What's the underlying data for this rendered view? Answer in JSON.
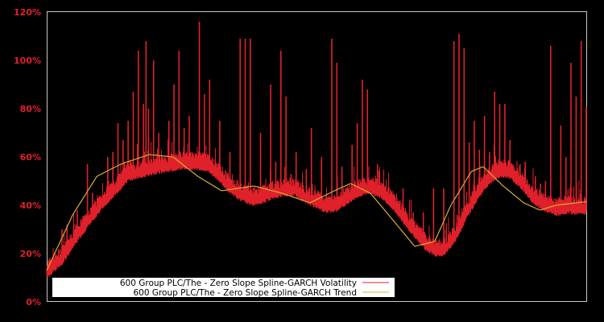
{
  "chart_data": {
    "type": "line",
    "title": "",
    "xlabel": "",
    "ylabel": "",
    "ylim": [
      0,
      120
    ],
    "yticks": [
      "0%",
      "20%",
      "40%",
      "60%",
      "80%",
      "100%",
      "120%"
    ],
    "ytick_values": [
      0,
      20,
      40,
      60,
      80,
      100,
      120
    ],
    "grid": false,
    "legend_position": "lower left",
    "background": "#000000",
    "plot_border": "#c8c8c8",
    "x_index_range": [
      0,
      100
    ],
    "series": [
      {
        "name": "600 Group PLC/The - Zero Slope Spline-GARCH Volatility",
        "color": "#e0202a",
        "baseline_points": [
          [
            0,
            12
          ],
          [
            3,
            18
          ],
          [
            5,
            25
          ],
          [
            8,
            34
          ],
          [
            10,
            40
          ],
          [
            13,
            47
          ],
          [
            15,
            52
          ],
          [
            18,
            54
          ],
          [
            20,
            55
          ],
          [
            22,
            56
          ],
          [
            25,
            57
          ],
          [
            28,
            57
          ],
          [
            30,
            56
          ],
          [
            32,
            52
          ],
          [
            34,
            47
          ],
          [
            36,
            44
          ],
          [
            38,
            42
          ],
          [
            40,
            43
          ],
          [
            42,
            45
          ],
          [
            44,
            46
          ],
          [
            46,
            46
          ],
          [
            48,
            43
          ],
          [
            50,
            41
          ],
          [
            52,
            39
          ],
          [
            54,
            40
          ],
          [
            56,
            43
          ],
          [
            58,
            46
          ],
          [
            60,
            47
          ],
          [
            62,
            45
          ],
          [
            64,
            41
          ],
          [
            66,
            35
          ],
          [
            68,
            29
          ],
          [
            70,
            24
          ],
          [
            72,
            21
          ],
          [
            73,
            21
          ],
          [
            74,
            22
          ],
          [
            76,
            28
          ],
          [
            78,
            37
          ],
          [
            80,
            45
          ],
          [
            82,
            51
          ],
          [
            84,
            54
          ],
          [
            86,
            53
          ],
          [
            88,
            49
          ],
          [
            90,
            43
          ],
          [
            92,
            40
          ],
          [
            94,
            38
          ],
          [
            96,
            38.5
          ],
          [
            98,
            38.5
          ],
          [
            100,
            38.5
          ]
        ],
        "spikes": [
          [
            3,
            30
          ],
          [
            4,
            32
          ],
          [
            6,
            38
          ],
          [
            8,
            57
          ],
          [
            9,
            45
          ],
          [
            10,
            43
          ],
          [
            12,
            60
          ],
          [
            13,
            62
          ],
          [
            14,
            74
          ],
          [
            15,
            67
          ],
          [
            16,
            75
          ],
          [
            17,
            87
          ],
          [
            18,
            104
          ],
          [
            19,
            82
          ],
          [
            19.5,
            108
          ],
          [
            20,
            80
          ],
          [
            21,
            100
          ],
          [
            22,
            70
          ],
          [
            24,
            75
          ],
          [
            25,
            90
          ],
          [
            26,
            104
          ],
          [
            27,
            72
          ],
          [
            28,
            77
          ],
          [
            30,
            116
          ],
          [
            31,
            86
          ],
          [
            32,
            92
          ],
          [
            33,
            56
          ],
          [
            34,
            75
          ],
          [
            36,
            62
          ],
          [
            38,
            109
          ],
          [
            39,
            109
          ],
          [
            40,
            109
          ],
          [
            42,
            70
          ],
          [
            44,
            90
          ],
          [
            45,
            58
          ],
          [
            46,
            104
          ],
          [
            47,
            85
          ],
          [
            48,
            53
          ],
          [
            49,
            62
          ],
          [
            51,
            55
          ],
          [
            52,
            72
          ],
          [
            54,
            60
          ],
          [
            56,
            109
          ],
          [
            57,
            99
          ],
          [
            58,
            56
          ],
          [
            60,
            65
          ],
          [
            61,
            74
          ],
          [
            62,
            92
          ],
          [
            63,
            88
          ],
          [
            65,
            57
          ],
          [
            67,
            44
          ],
          [
            68,
            44
          ],
          [
            70,
            47
          ],
          [
            72,
            37
          ],
          [
            74,
            37
          ],
          [
            76,
            47
          ],
          [
            78,
            47
          ],
          [
            80,
            108
          ],
          [
            81,
            111
          ],
          [
            82,
            105
          ],
          [
            83,
            66
          ],
          [
            84,
            75
          ],
          [
            85,
            63
          ],
          [
            86,
            77
          ],
          [
            87,
            62
          ],
          [
            88,
            87
          ],
          [
            89,
            82
          ],
          [
            90,
            82
          ],
          [
            91,
            67
          ],
          [
            93,
            57
          ],
          [
            94,
            58
          ],
          [
            96,
            52
          ],
          [
            97,
            49
          ],
          [
            98,
            50
          ],
          [
            99,
            106
          ],
          [
            100,
            41
          ],
          [
            101,
            73
          ],
          [
            102,
            60
          ],
          [
            103,
            99
          ],
          [
            104,
            85
          ],
          [
            105,
            108
          ],
          [
            106,
            81
          ]
        ]
      },
      {
        "name": "600 Group PLC/The - Zero Slope Spline-GARCH Trend",
        "color": "#d4b030",
        "points": [
          [
            0,
            13
          ],
          [
            4.8,
            36
          ],
          [
            9.3,
            52
          ],
          [
            13.7,
            57
          ],
          [
            19,
            61
          ],
          [
            23.4,
            60
          ],
          [
            28,
            52
          ],
          [
            32.4,
            46
          ],
          [
            38.4,
            48
          ],
          [
            43.6,
            45
          ],
          [
            48.8,
            41
          ],
          [
            53.3,
            46
          ],
          [
            56.3,
            49
          ],
          [
            60,
            45
          ],
          [
            64.5,
            33
          ],
          [
            68.2,
            23
          ],
          [
            71.9,
            25
          ],
          [
            74.9,
            40
          ],
          [
            78.7,
            54
          ],
          [
            80.9,
            56
          ],
          [
            84.6,
            48
          ],
          [
            88.4,
            41
          ],
          [
            91.4,
            38
          ],
          [
            94.4,
            40
          ],
          [
            100,
            41.5
          ]
        ]
      }
    ]
  },
  "legend": {
    "items": [
      {
        "label": "600 Group PLC/The - Zero Slope Spline-GARCH Volatility",
        "color": "#e0202a"
      },
      {
        "label": "600 Group PLC/The - Zero Slope Spline-GARCH Trend",
        "color": "#d4b030"
      }
    ]
  }
}
